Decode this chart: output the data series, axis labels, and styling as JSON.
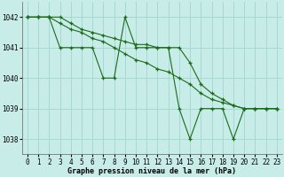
{
  "bg_color": "#c8ece8",
  "grid_color": "#a8d8d4",
  "line_color": "#1a6b1a",
  "s1": [
    1042,
    1042,
    1042,
    1041,
    1041,
    1041,
    1041,
    1040,
    1040,
    1042,
    1041,
    1041,
    1041,
    1041,
    1039,
    1038,
    1039,
    1039,
    1039,
    1038,
    1039,
    1039,
    1039,
    1039
  ],
  "s2": [
    1042,
    1042,
    1042,
    1041.8,
    1041.6,
    1041.5,
    1041.3,
    1041.2,
    1041.0,
    1040.8,
    1040.6,
    1040.5,
    1040.3,
    1040.2,
    1040.0,
    1039.8,
    1039.5,
    1039.3,
    1039.2,
    1039.1,
    1039.0,
    1039.0,
    1039.0,
    1039.0
  ],
  "s3": [
    1042,
    1042,
    1042,
    1042,
    1041.8,
    1041.6,
    1041.5,
    1041.4,
    1041.3,
    1041.2,
    1041.1,
    1041.1,
    1041.0,
    1041.0,
    1041.0,
    1040.5,
    1039.8,
    1039.5,
    1039.3,
    1039.1,
    1039.0,
    1039.0,
    1039.0,
    1039.0
  ],
  "xlim": [
    -0.5,
    23.5
  ],
  "ylim": [
    1037.5,
    1042.5
  ],
  "yticks": [
    1038,
    1039,
    1040,
    1041,
    1042
  ],
  "xticks": [
    0,
    1,
    2,
    3,
    4,
    5,
    6,
    7,
    8,
    9,
    10,
    11,
    12,
    13,
    14,
    15,
    16,
    17,
    18,
    19,
    20,
    21,
    22,
    23
  ],
  "xlabel": "Graphe pression niveau de la mer (hPa)"
}
